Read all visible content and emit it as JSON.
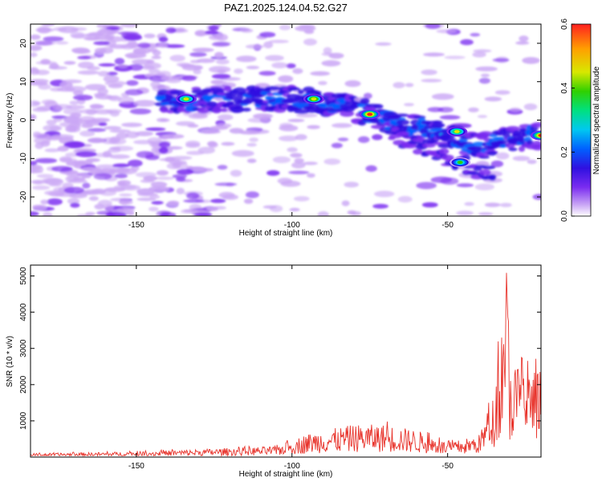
{
  "title": "PAZ1.2025.124.04.52.G27",
  "colors": {
    "snr_line": "#e8342c",
    "colormap": [
      "#ffffff",
      "#c9a5f5",
      "#7a2cf0",
      "#2f10e0",
      "#0060ff",
      "#00c8f0",
      "#00e080",
      "#30d000",
      "#d8e800",
      "#ffa000",
      "#ff2020"
    ]
  },
  "chart_data": [
    {
      "type": "heatmap",
      "title": "PAZ1.2025.124.04.52.G27",
      "xlabel": "Height of straight line (km)",
      "ylabel": "Frequency (Hz)",
      "xlim": [
        -184,
        -20
      ],
      "ylim": [
        -25,
        25
      ],
      "x_ticks": [
        -150,
        -100,
        -50
      ],
      "y_ticks": [
        -20,
        -10,
        0,
        10,
        20
      ],
      "x_tick_labels": [
        "-150",
        "-100",
        "-50"
      ],
      "y_tick_labels": [
        "-20",
        "-10",
        "0",
        "10",
        "20"
      ],
      "colorbar": {
        "label": "Normalized spectral amplitude",
        "range": [
          0,
          0.6
        ],
        "ticks": [
          0.0,
          0.2,
          0.4,
          0.6
        ],
        "tick_labels": [
          "0.0",
          "0.2",
          "0.4",
          "0.6"
        ]
      },
      "ridge": [
        {
          "x": -142,
          "freq": 5
        },
        {
          "x": -120,
          "freq": 5.5
        },
        {
          "x": -100,
          "freq": 5.5
        },
        {
          "x": -90,
          "freq": 4.5
        },
        {
          "x": -80,
          "freq": 3
        },
        {
          "x": -70,
          "freq": 0
        },
        {
          "x": -60,
          "freq": -2
        },
        {
          "x": -50,
          "freq": -4
        },
        {
          "x": -40,
          "freq": -7
        },
        {
          "x": -30,
          "freq": -5
        },
        {
          "x": -20,
          "freq": -4
        }
      ],
      "hotspots": [
        {
          "x": -75,
          "freq": 1.5,
          "amp": 0.6
        },
        {
          "x": -93,
          "freq": 5.5,
          "amp": 0.5
        },
        {
          "x": -134,
          "freq": 5.5,
          "amp": 0.45
        },
        {
          "x": -20,
          "freq": -4,
          "amp": 0.6
        },
        {
          "x": -46,
          "freq": -11,
          "amp": 0.4
        },
        {
          "x": -47,
          "freq": -3,
          "amp": 0.45
        }
      ]
    },
    {
      "type": "line",
      "xlabel": "Height of straight line (km)",
      "ylabel": "SNR (10 * v/v)",
      "xlim": [
        -184,
        -20
      ],
      "ylim": [
        0,
        5300
      ],
      "x_ticks": [
        -150,
        -100,
        -50
      ],
      "y_ticks": [
        1000,
        2000,
        3000,
        4000,
        5000
      ],
      "x_tick_labels": [
        "-150",
        "-100",
        "-50"
      ],
      "y_tick_labels": [
        "1000",
        "2000",
        "3000",
        "4000",
        "5000"
      ],
      "envelope": [
        {
          "x": -184,
          "snr": 100
        },
        {
          "x": -150,
          "snr": 150
        },
        {
          "x": -120,
          "snr": 250
        },
        {
          "x": -105,
          "snr": 300
        },
        {
          "x": -95,
          "snr": 650
        },
        {
          "x": -80,
          "snr": 900
        },
        {
          "x": -70,
          "snr": 900
        },
        {
          "x": -60,
          "snr": 750
        },
        {
          "x": -50,
          "snr": 400
        },
        {
          "x": -40,
          "snr": 600
        },
        {
          "x": -35,
          "snr": 1800
        },
        {
          "x": -31,
          "snr": 5300
        },
        {
          "x": -30,
          "snr": 2800
        },
        {
          "x": -25,
          "snr": 2400
        },
        {
          "x": -20,
          "snr": 2500
        }
      ]
    }
  ]
}
